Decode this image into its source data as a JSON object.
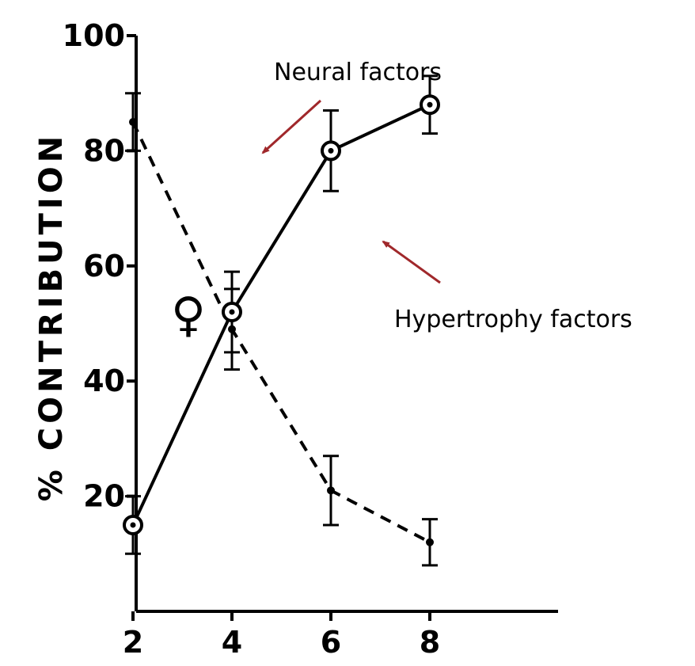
{
  "chart_data": {
    "type": "line",
    "ylabel": "% CONTRIBUTION",
    "xlabel": "",
    "xlim": [
      0,
      9
    ],
    "ylim": [
      0,
      100
    ],
    "x_ticks": [
      2,
      4,
      6,
      8
    ],
    "y_ticks": [
      20,
      40,
      60,
      80,
      100
    ],
    "marker_label": "♀",
    "series": [
      {
        "name": "Neural factors",
        "style": "dashed",
        "marker": "dot",
        "x": [
          2,
          4,
          6,
          8
        ],
        "y": [
          85,
          49,
          21,
          12
        ],
        "err": [
          5,
          7,
          6,
          4
        ]
      },
      {
        "name": "Hypertrophy factors",
        "style": "solid",
        "marker": "circle",
        "x": [
          2,
          4,
          6,
          8
        ],
        "y": [
          15,
          52,
          80,
          88
        ],
        "err": [
          5,
          7,
          7,
          5
        ]
      }
    ],
    "annotations": [
      {
        "text": "Neural factors",
        "arrow_color": "#A0282B"
      },
      {
        "text": "Hypertrophy factors",
        "arrow_color": "#A0282B"
      }
    ]
  }
}
